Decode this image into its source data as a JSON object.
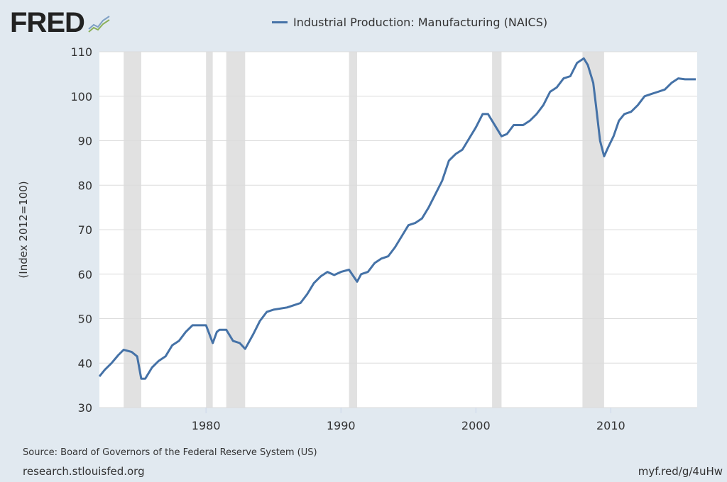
{
  "logo": {
    "text": "FRED"
  },
  "footer": {
    "source": "Source: Board of Governors of the Federal Reserve System (US)",
    "site": "research.stlouisfed.org",
    "short_link": "myf.red/g/4uHw"
  },
  "colors": {
    "background": "#e1e9f0",
    "line": "#4572a7",
    "recession": "#e1e1e1",
    "grid": "#e0e0e0"
  },
  "chart_data": {
    "type": "line",
    "title": "",
    "legend": [
      "Industrial Production: Manufacturing (NAICS)"
    ],
    "legend_placement": "top",
    "xlabel": "",
    "ylabel": "(Index 2012=100)",
    "xlim": [
      1972.1,
      2016.4
    ],
    "ylim": [
      30,
      110
    ],
    "yticks": [
      30,
      40,
      50,
      60,
      70,
      80,
      90,
      100,
      110
    ],
    "xticks": [
      1980,
      1990,
      2000,
      2010
    ],
    "grid": true,
    "recessions": [
      [
        1973.9,
        1975.2
      ],
      [
        1980.0,
        1980.5
      ],
      [
        1981.5,
        1982.9
      ],
      [
        1990.6,
        1991.2
      ],
      [
        2001.2,
        2001.9
      ],
      [
        2007.9,
        2009.5
      ]
    ],
    "series": [
      {
        "name": "Industrial Production: Manufacturing (NAICS)",
        "x": [
          1972.1,
          1972.5,
          1973.0,
          1973.5,
          1973.9,
          1974.5,
          1974.9,
          1975.2,
          1975.5,
          1976.0,
          1976.5,
          1977.0,
          1977.5,
          1978.0,
          1978.5,
          1979.0,
          1979.5,
          1980.0,
          1980.5,
          1980.8,
          1981.0,
          1981.5,
          1982.0,
          1982.5,
          1982.9,
          1983.5,
          1984.0,
          1984.5,
          1985.0,
          1986.0,
          1986.5,
          1987.0,
          1987.5,
          1988.0,
          1988.5,
          1989.0,
          1989.5,
          1990.0,
          1990.6,
          1991.2,
          1991.5,
          1992.0,
          1992.5,
          1993.0,
          1993.5,
          1994.0,
          1994.5,
          1995.0,
          1995.5,
          1996.0,
          1996.5,
          1997.0,
          1997.5,
          1998.0,
          1998.5,
          1999.0,
          1999.5,
          2000.0,
          2000.5,
          2000.9,
          2001.5,
          2001.9,
          2002.3,
          2002.8,
          2003.5,
          2004.0,
          2004.5,
          2005.0,
          2005.5,
          2006.0,
          2006.5,
          2007.0,
          2007.5,
          2008.0,
          2008.3,
          2008.7,
          2008.9,
          2009.2,
          2009.5,
          2009.8,
          2010.2,
          2010.6,
          2011.0,
          2011.5,
          2012.0,
          2012.5,
          2013.0,
          2013.5,
          2014.0,
          2014.5,
          2015.0,
          2015.5,
          2016.3
        ],
        "values": [
          37,
          38.5,
          40,
          41.8,
          43,
          42.5,
          41.5,
          36.5,
          36.5,
          39,
          40.5,
          41.5,
          44,
          45,
          47,
          48.5,
          48.5,
          48.5,
          44.5,
          47,
          47.5,
          47.5,
          45,
          44.5,
          43.2,
          46.5,
          49.5,
          51.5,
          52,
          52.5,
          53,
          53.5,
          55.5,
          58,
          59.5,
          60.5,
          59.8,
          60.5,
          61,
          58.3,
          60,
          60.5,
          62.5,
          63.5,
          64,
          66,
          68.5,
          71,
          71.5,
          72.5,
          75,
          78,
          81,
          85.5,
          87,
          88,
          90.5,
          93,
          96,
          96,
          93,
          91,
          91.5,
          93.5,
          93.5,
          94.5,
          96,
          98,
          101,
          102,
          104,
          104.5,
          107.5,
          108.5,
          107,
          103,
          98,
          90,
          86.5,
          88.5,
          91,
          94.5,
          96,
          96.5,
          98,
          100,
          100.5,
          101,
          101.5,
          103,
          104,
          103.8,
          103.8
        ]
      }
    ]
  }
}
